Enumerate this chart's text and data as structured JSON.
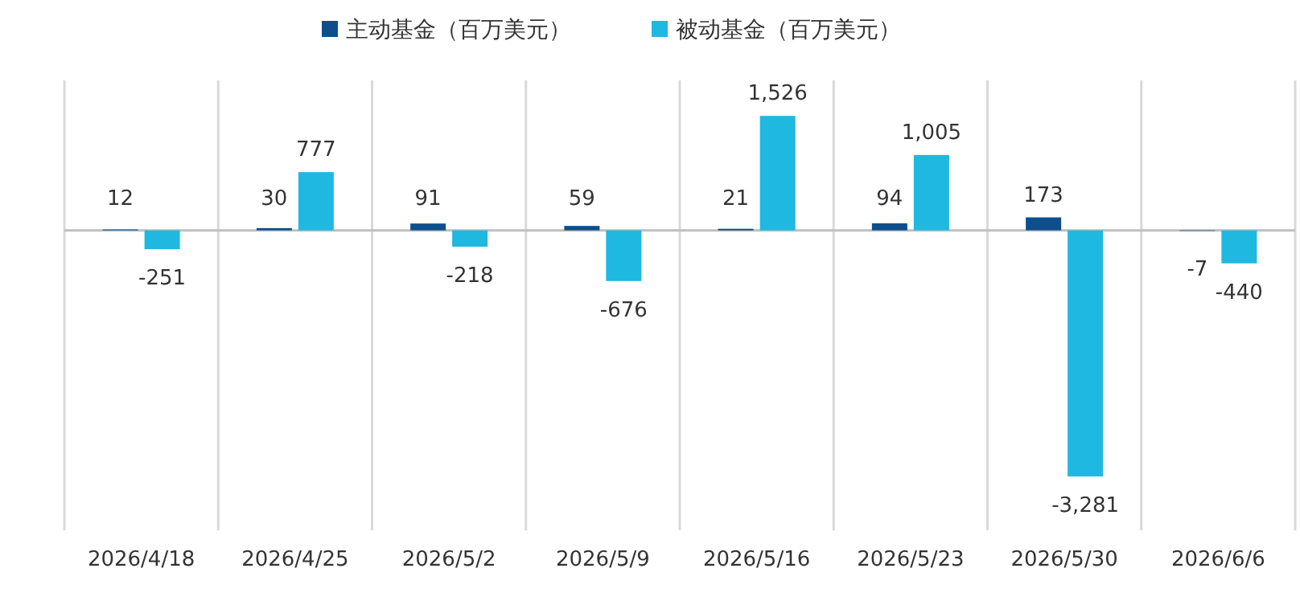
{
  "chart_data": {
    "type": "bar",
    "categories": [
      "2026/4/18",
      "2026/4/25",
      "2026/5/2",
      "2026/5/9",
      "2026/5/16",
      "2026/5/23",
      "2026/5/30",
      "2026/6/6"
    ],
    "series": [
      {
        "name": "主动基金（百万美元）",
        "color": "#0d4f8c",
        "values": [
          12,
          30,
          91,
          59,
          21,
          94,
          173,
          -7
        ],
        "value_labels": [
          "12",
          "30",
          "91",
          "59",
          "21",
          "94",
          "173",
          "-7"
        ]
      },
      {
        "name": "被动基金（百万美元）",
        "color": "#1fb8e0",
        "values": [
          -251,
          777,
          -218,
          -676,
          1526,
          1005,
          -3281,
          -440
        ],
        "value_labels": [
          "-251",
          "777",
          "-218",
          "-676",
          "1,526",
          "1,005",
          "-3,281",
          "-440"
        ]
      }
    ],
    "ylim": [
      -4000,
      2000
    ],
    "tick_labels": "x",
    "grid": "x",
    "legend": "top"
  }
}
